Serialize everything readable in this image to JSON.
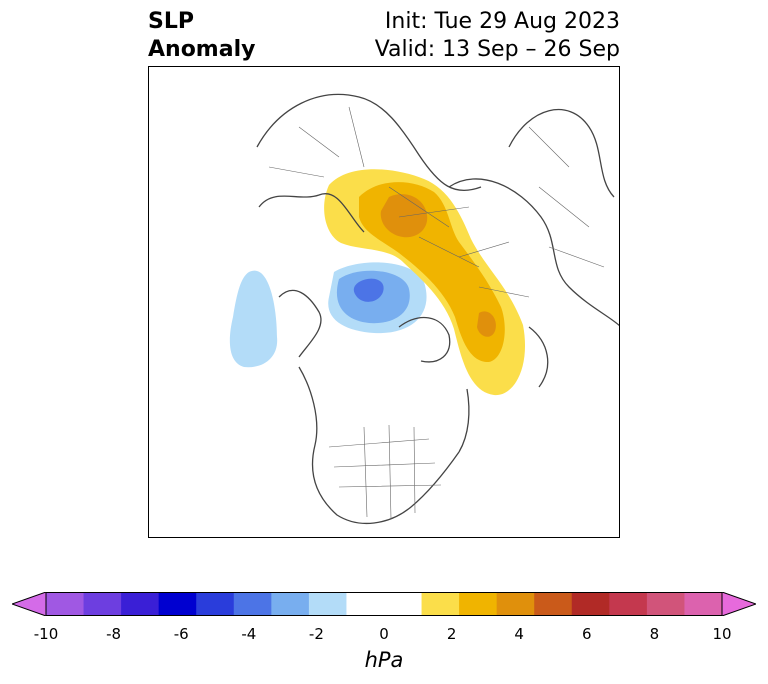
{
  "title": {
    "left_line1": "SLP",
    "left_line2": "Anomaly",
    "init": "Init: Tue 29 Aug 2023",
    "valid": "Valid: 13 Sep – 26 Sep"
  },
  "map": {
    "projection": "north-polar-stereographic",
    "variable": "sea-level-pressure-anomaly",
    "features": [
      {
        "kind": "positive",
        "level_hpa": 4,
        "region": "eastern-europe-western-russia"
      },
      {
        "kind": "positive",
        "level_hpa": 4,
        "region": "north-pacific-bering"
      },
      {
        "kind": "negative",
        "level_hpa": -6,
        "region": "greenland-norwegian-sea"
      },
      {
        "kind": "negative",
        "level_hpa": -2,
        "region": "north-atlantic-mid"
      }
    ]
  },
  "colorbar": {
    "units": "hPa",
    "extend": "both",
    "bins": [
      {
        "color": "#d46be8"
      },
      {
        "color": "#a058e3"
      },
      {
        "color": "#6d3ee0"
      },
      {
        "color": "#3a1fd6"
      },
      {
        "color": "#0000d0"
      },
      {
        "color": "#2a3ddb"
      },
      {
        "color": "#4c74e6"
      },
      {
        "color": "#78aeef"
      },
      {
        "color": "#b3dcf8"
      },
      {
        "color": "#ffffff"
      },
      {
        "color": "#ffffff"
      },
      {
        "color": "#fbde4a"
      },
      {
        "color": "#f0b400"
      },
      {
        "color": "#e0900c"
      },
      {
        "color": "#ca5a1a"
      },
      {
        "color": "#b12a26"
      },
      {
        "color": "#c4384e"
      },
      {
        "color": "#d1547a"
      },
      {
        "color": "#dc62ae"
      },
      {
        "color": "#e76adc"
      }
    ],
    "ticks": [
      "-10",
      "-8",
      "-6",
      "-4",
      "-2",
      "0",
      "2",
      "4",
      "6",
      "8",
      "10"
    ]
  }
}
